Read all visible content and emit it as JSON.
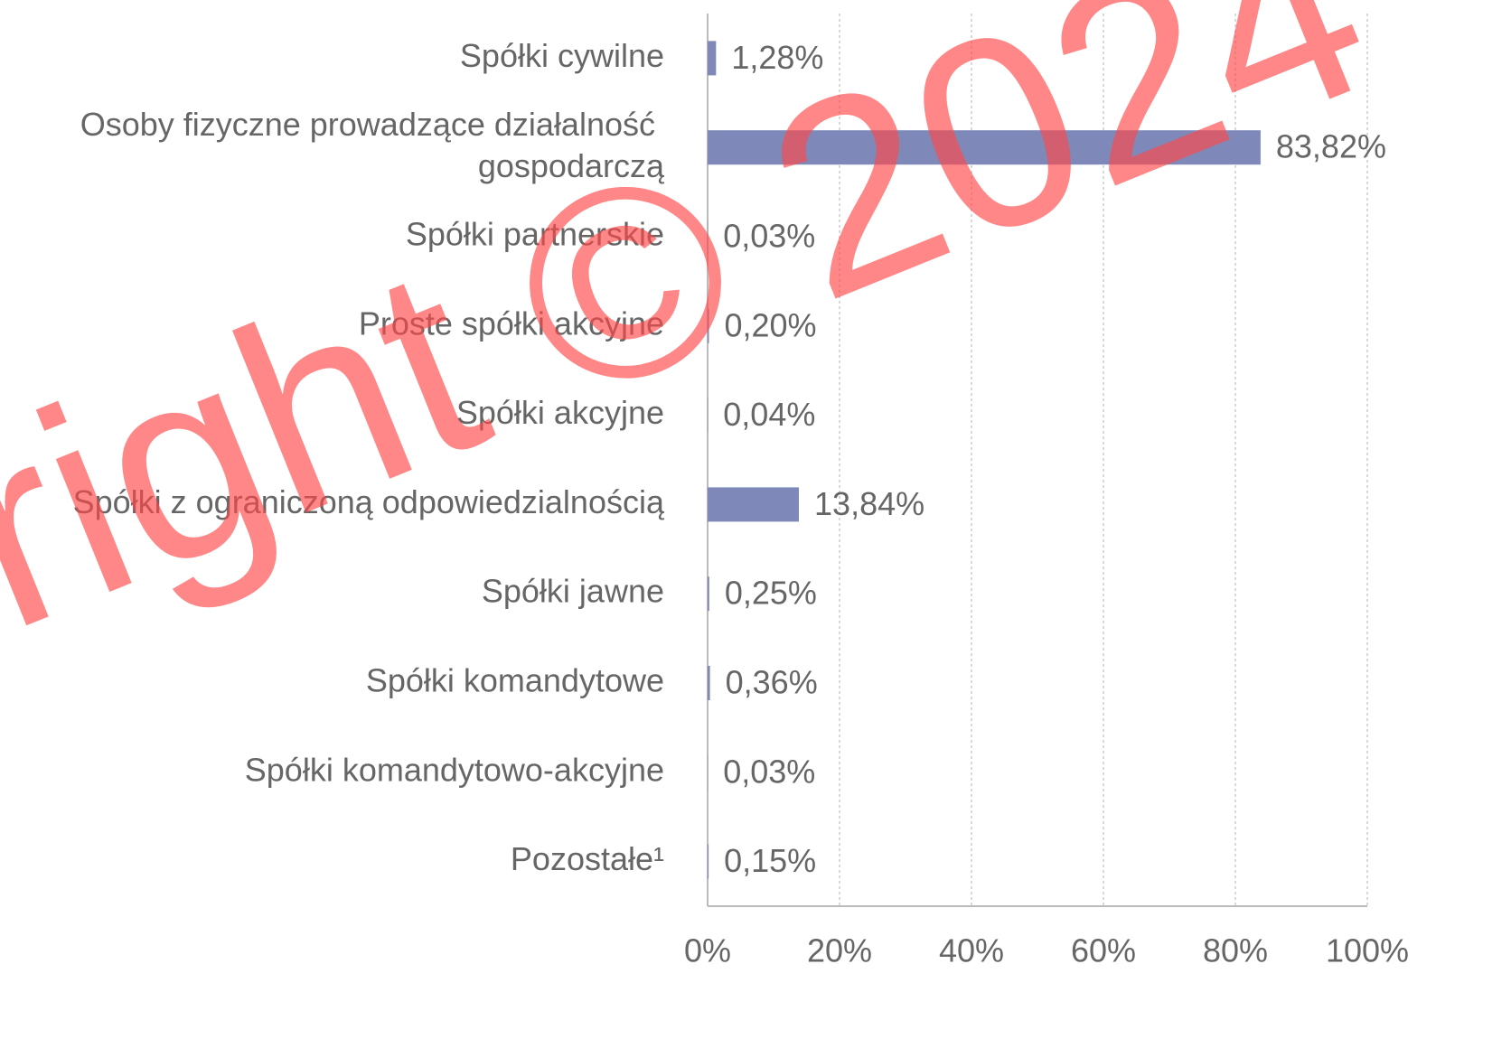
{
  "chart_data": {
    "type": "barh",
    "categories": [
      "Spółki cywilne",
      "Osoby fizyczne prowadzące działalność gospodarczą",
      "Spółki partnerskie",
      "Proste spółki akcyjne",
      "Spółki akcyjne",
      "Spółki z ograniczoną odpowiedzialnością",
      "Spółki jawne",
      "Spółki komandytowe",
      "Spółki komandytowo-akcyjne",
      "Pozostałe¹"
    ],
    "values": [
      1.28,
      83.82,
      0.03,
      0.2,
      0.04,
      13.84,
      0.25,
      0.36,
      0.03,
      0.15
    ],
    "value_labels": [
      "1,28%",
      "83,82%",
      "0,03%",
      "0,20%",
      "0,04%",
      "13,84%",
      "0,25%",
      "0,36%",
      "0,03%",
      "0,15%"
    ],
    "color": "#7f89b9",
    "xlim": [
      0,
      100
    ],
    "xticks": [
      {
        "value": 0,
        "label": "0%"
      },
      {
        "value": 20,
        "label": "20%"
      },
      {
        "value": 40,
        "label": "40%"
      },
      {
        "value": 60,
        "label": "60%"
      },
      {
        "value": 80,
        "label": "80%"
      },
      {
        "value": 100,
        "label": "100%"
      }
    ],
    "grid": true,
    "watermark": "right © 2024"
  }
}
